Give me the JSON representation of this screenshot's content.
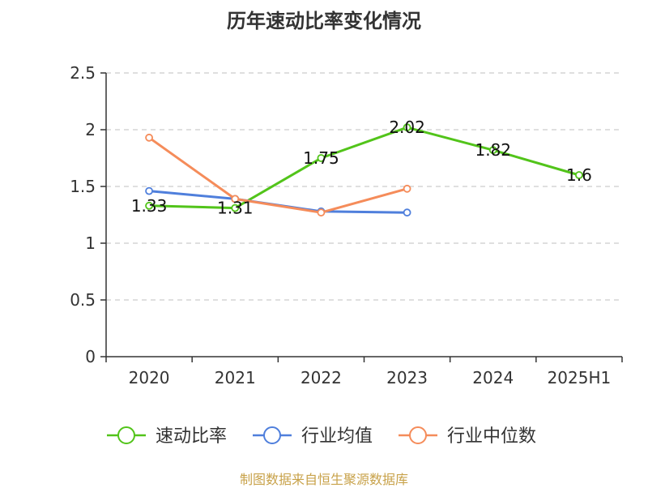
{
  "chart_data": {
    "type": "line",
    "title": "历年速动比率变化情况",
    "categories": [
      "2020",
      "2021",
      "2022",
      "2023",
      "2024",
      "2025H1"
    ],
    "ylim": [
      0,
      2.5
    ],
    "yticks": [
      "0",
      "0.5",
      "1",
      "1.5",
      "2",
      "2.5"
    ],
    "ytick_values": [
      0,
      0.5,
      1,
      1.5,
      2,
      2.5
    ],
    "grid": true,
    "legend_position": "bottom",
    "series": [
      {
        "name": "速动比率",
        "color": "#52c41a",
        "values": [
          1.33,
          1.31,
          1.75,
          2.02,
          1.82,
          1.6
        ],
        "labels": [
          "1.33",
          "1.31",
          "1.75",
          "2.02",
          "1.82",
          "1.6"
        ]
      },
      {
        "name": "行业均值",
        "color": "#4f7fdc",
        "values": [
          1.46,
          1.39,
          1.28,
          1.27,
          null,
          null
        ]
      },
      {
        "name": "行业中位数",
        "color": "#f58c5a",
        "values": [
          1.93,
          1.39,
          1.27,
          1.48,
          null,
          null
        ]
      }
    ]
  },
  "footer": {
    "source": "制图数据来自恒生聚源数据库"
  }
}
